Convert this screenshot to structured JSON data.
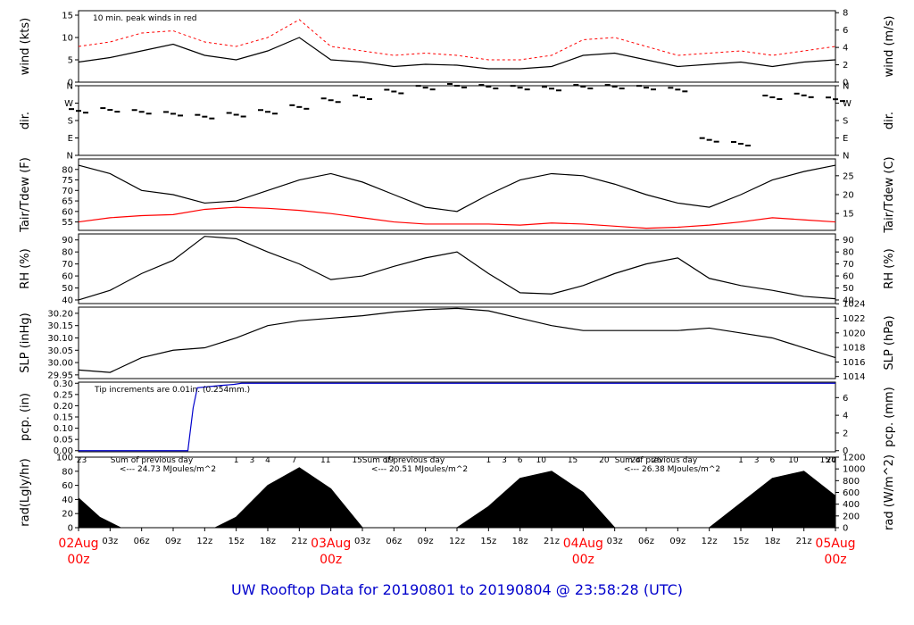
{
  "chart_data": {
    "type": "line",
    "title": "UW Rooftop Data for 20190801  to  20190804 @ 23:58:28  (UTC)",
    "x_ticks": [
      "03z",
      "06z",
      "09z",
      "12z",
      "15z",
      "18z",
      "21z",
      "03z",
      "06z",
      "09z",
      "12z",
      "15z",
      "18z",
      "21z",
      "03z",
      "06z",
      "09z",
      "12z",
      "15z",
      "18z",
      "21z"
    ],
    "day_labels": [
      {
        "date": "02Aug",
        "time": "00z"
      },
      {
        "date": "03Aug",
        "time": "00z"
      },
      {
        "date": "04Aug",
        "time": "00z"
      },
      {
        "date": "05Aug",
        "time": "00z"
      }
    ],
    "panels": [
      {
        "id": "wind",
        "ylabel_left": "wind (kts)",
        "ylabel_right": "wind (m/s)",
        "left_ticks": [
          "0",
          "5",
          "10",
          "15"
        ],
        "right_ticks": [
          "0",
          "2",
          "4",
          "6",
          "8"
        ],
        "annotation": "10 min. peak winds in red",
        "series": [
          {
            "name": "wind",
            "color": "#000000",
            "x": [
              0,
              3,
              6,
              9,
              12,
              15,
              18,
              21,
              24,
              27,
              30,
              33,
              36,
              39,
              42,
              45,
              48,
              51,
              54,
              57,
              60,
              63,
              66,
              69,
              72
            ],
            "y": [
              4.5,
              5.5,
              7,
              8.5,
              6,
              5,
              7,
              10,
              5,
              4.5,
              3.5,
              4,
              3.8,
              3,
              3,
              3.5,
              6,
              6.5,
              5,
              3.5,
              4,
              4.5,
              3.5,
              4.5,
              5
            ]
          },
          {
            "name": "peak",
            "color": "#ff0000",
            "x": [
              0,
              3,
              6,
              9,
              12,
              15,
              18,
              21,
              24,
              27,
              30,
              33,
              36,
              39,
              42,
              45,
              48,
              51,
              54,
              57,
              60,
              63,
              66,
              69,
              72
            ],
            "y": [
              8,
              9,
              11,
              11.5,
              9,
              8,
              10,
              14,
              8,
              7,
              6,
              6.5,
              6,
              5,
              5,
              6,
              9.5,
              10,
              8,
              6,
              6.5,
              7,
              6,
              7,
              8
            ]
          }
        ]
      },
      {
        "id": "dir",
        "ylabel_left": "dir.",
        "ylabel_right": "dir.",
        "left_ticks": [
          "N",
          "E",
          "S",
          "W",
          "N"
        ],
        "right_ticks": [
          "N",
          "E",
          "S",
          "W",
          "N"
        ],
        "series": [
          {
            "name": "dir",
            "color": "#000000",
            "x": [
              0,
              3,
              6,
              9,
              12,
              15,
              18,
              21,
              24,
              27,
              30,
              33,
              36,
              39,
              42,
              45,
              48,
              51,
              54,
              57,
              60,
              63,
              66,
              69,
              72
            ],
            "y": [
              230,
              235,
              225,
              215,
              200,
              210,
              225,
              250,
              285,
              300,
              330,
              350,
              360,
              355,
              350,
              345,
              355,
              355,
              350,
              340,
              80,
              60,
              300,
              310,
              290
            ]
          }
        ]
      },
      {
        "id": "temp",
        "ylabel_left": "Tair/Tdew (F)",
        "ylabel_right": "Tair/Tdew (C)",
        "left_ticks": [
          "55",
          "60",
          "65",
          "70",
          "75",
          "80"
        ],
        "right_ticks": [
          "15",
          "20",
          "25"
        ],
        "series": [
          {
            "name": "Tair",
            "color": "#000000",
            "x": [
              0,
              3,
              6,
              9,
              12,
              15,
              18,
              21,
              24,
              27,
              30,
              33,
              36,
              39,
              42,
              45,
              48,
              51,
              54,
              57,
              60,
              63,
              66,
              69,
              72
            ],
            "y": [
              82,
              78,
              70,
              68,
              64,
              65,
              70,
              75,
              78,
              74,
              68,
              62,
              60,
              68,
              75,
              78,
              77,
              73,
              68,
              64,
              62,
              68,
              75,
              79,
              82
            ]
          },
          {
            "name": "Tdew",
            "color": "#ff0000",
            "x": [
              0,
              3,
              6,
              9,
              12,
              15,
              18,
              21,
              24,
              27,
              30,
              33,
              36,
              39,
              42,
              45,
              48,
              51,
              54,
              57,
              60,
              63,
              66,
              69,
              72
            ],
            "y": [
              55,
              57,
              58,
              58.5,
              61,
              62,
              61.5,
              60.5,
              59,
              57,
              55,
              54,
              54,
              54,
              53.5,
              54.5,
              54,
              53,
              52,
              52.5,
              53.5,
              55,
              57,
              56,
              55
            ]
          }
        ]
      },
      {
        "id": "rh",
        "ylabel_left": "RH (%)",
        "ylabel_right": "RH (%)",
        "left_ticks": [
          "40",
          "50",
          "60",
          "70",
          "80",
          "90"
        ],
        "right_ticks": [
          "40",
          "50",
          "60",
          "70",
          "80",
          "90"
        ],
        "series": [
          {
            "name": "RH",
            "color": "#000000",
            "x": [
              0,
              3,
              6,
              9,
              12,
              15,
              18,
              21,
              24,
              27,
              30,
              33,
              36,
              39,
              42,
              45,
              48,
              51,
              54,
              57,
              60,
              63,
              66,
              69,
              72
            ],
            "y": [
              40,
              48,
              62,
              73,
              93,
              91,
              80,
              70,
              57,
              60,
              68,
              75,
              80,
              62,
              46,
              45,
              52,
              62,
              70,
              75,
              58,
              52,
              48,
              43,
              41
            ]
          }
        ]
      },
      {
        "id": "slp",
        "ylabel_left": "SLP (inHg)",
        "ylabel_right": "SLP (hPa)",
        "left_ticks": [
          "29.95",
          "30.00",
          "30.05",
          "30.10",
          "30.15",
          "30.20"
        ],
        "right_ticks": [
          "1014",
          "1016",
          "1018",
          "1020",
          "1022",
          "1024"
        ],
        "series": [
          {
            "name": "SLP",
            "color": "#000000",
            "x": [
              0,
              3,
              6,
              9,
              12,
              15,
              18,
              21,
              24,
              27,
              30,
              33,
              36,
              39,
              42,
              45,
              48,
              51,
              54,
              57,
              60,
              63,
              66,
              69,
              72
            ],
            "y": [
              29.97,
              29.96,
              30.02,
              30.05,
              30.06,
              30.1,
              30.15,
              30.17,
              30.18,
              30.19,
              30.205,
              30.215,
              30.22,
              30.21,
              30.18,
              30.15,
              30.13,
              30.13,
              30.13,
              30.13,
              30.14,
              30.12,
              30.1,
              30.06,
              30.02
            ]
          }
        ]
      },
      {
        "id": "pcp",
        "ylabel_left": "pcp. (in)",
        "ylabel_right": "pcp. (mm)",
        "left_ticks": [
          "0.00",
          "0.05",
          "0.10",
          "0.15",
          "0.20",
          "0.25",
          "0.30"
        ],
        "right_ticks": [
          "0",
          "2",
          "4",
          "6"
        ],
        "annotation": "Tip increments are 0.01in. (0.254mm.)",
        "series": [
          {
            "name": "pcp",
            "color": "#0000cc",
            "x": [
              0,
              10.4,
              10.9,
              11.3,
              12.4,
              13.5,
              14.8,
              15.5,
              72
            ],
            "y": [
              0,
              0,
              0.19,
              0.28,
              0.285,
              0.29,
              0.295,
              0.3,
              0.3
            ]
          }
        ]
      },
      {
        "id": "rad",
        "ylabel_left": "rad(Lgly/hr)",
        "ylabel_right": "rad (W/m^2)",
        "left_ticks": [
          "0",
          "20",
          "40",
          "60",
          "80",
          "100"
        ],
        "right_ticks": [
          "0",
          "200",
          "400",
          "600",
          "800",
          "1000",
          "1200"
        ],
        "day_hours": [
          "23",
          "1",
          "3",
          "4",
          "7",
          "11",
          "15",
          "19",
          "1",
          "3",
          "6",
          "10",
          "15",
          "20",
          "24",
          "26",
          "1",
          "3",
          "6",
          "10",
          "15",
          "20",
          "24"
        ],
        "sums": [
          {
            "line1": "Sum of previous day",
            "line2": "<--- 24.73 MJoules/m^2"
          },
          {
            "line1": "Sum of previous day",
            "line2": "<--- 20.51 MJoules/m^2"
          },
          {
            "line1": "Sum of previous day",
            "line2": "<--- 26.38 MJoules/m^2"
          }
        ],
        "series": [
          {
            "name": "rad",
            "color": "#000000",
            "x": [
              0,
              2,
              4,
              13,
              15,
              18,
              21,
              24,
              27,
              36,
              39,
              42,
              45,
              48,
              51,
              60,
              63,
              66,
              69,
              72
            ],
            "y": [
              42,
              15,
              0,
              0,
              15,
              60,
              85,
              55,
              0,
              0,
              30,
              70,
              80,
              50,
              0,
              0,
              35,
              70,
              80,
              45
            ]
          }
        ]
      }
    ]
  }
}
